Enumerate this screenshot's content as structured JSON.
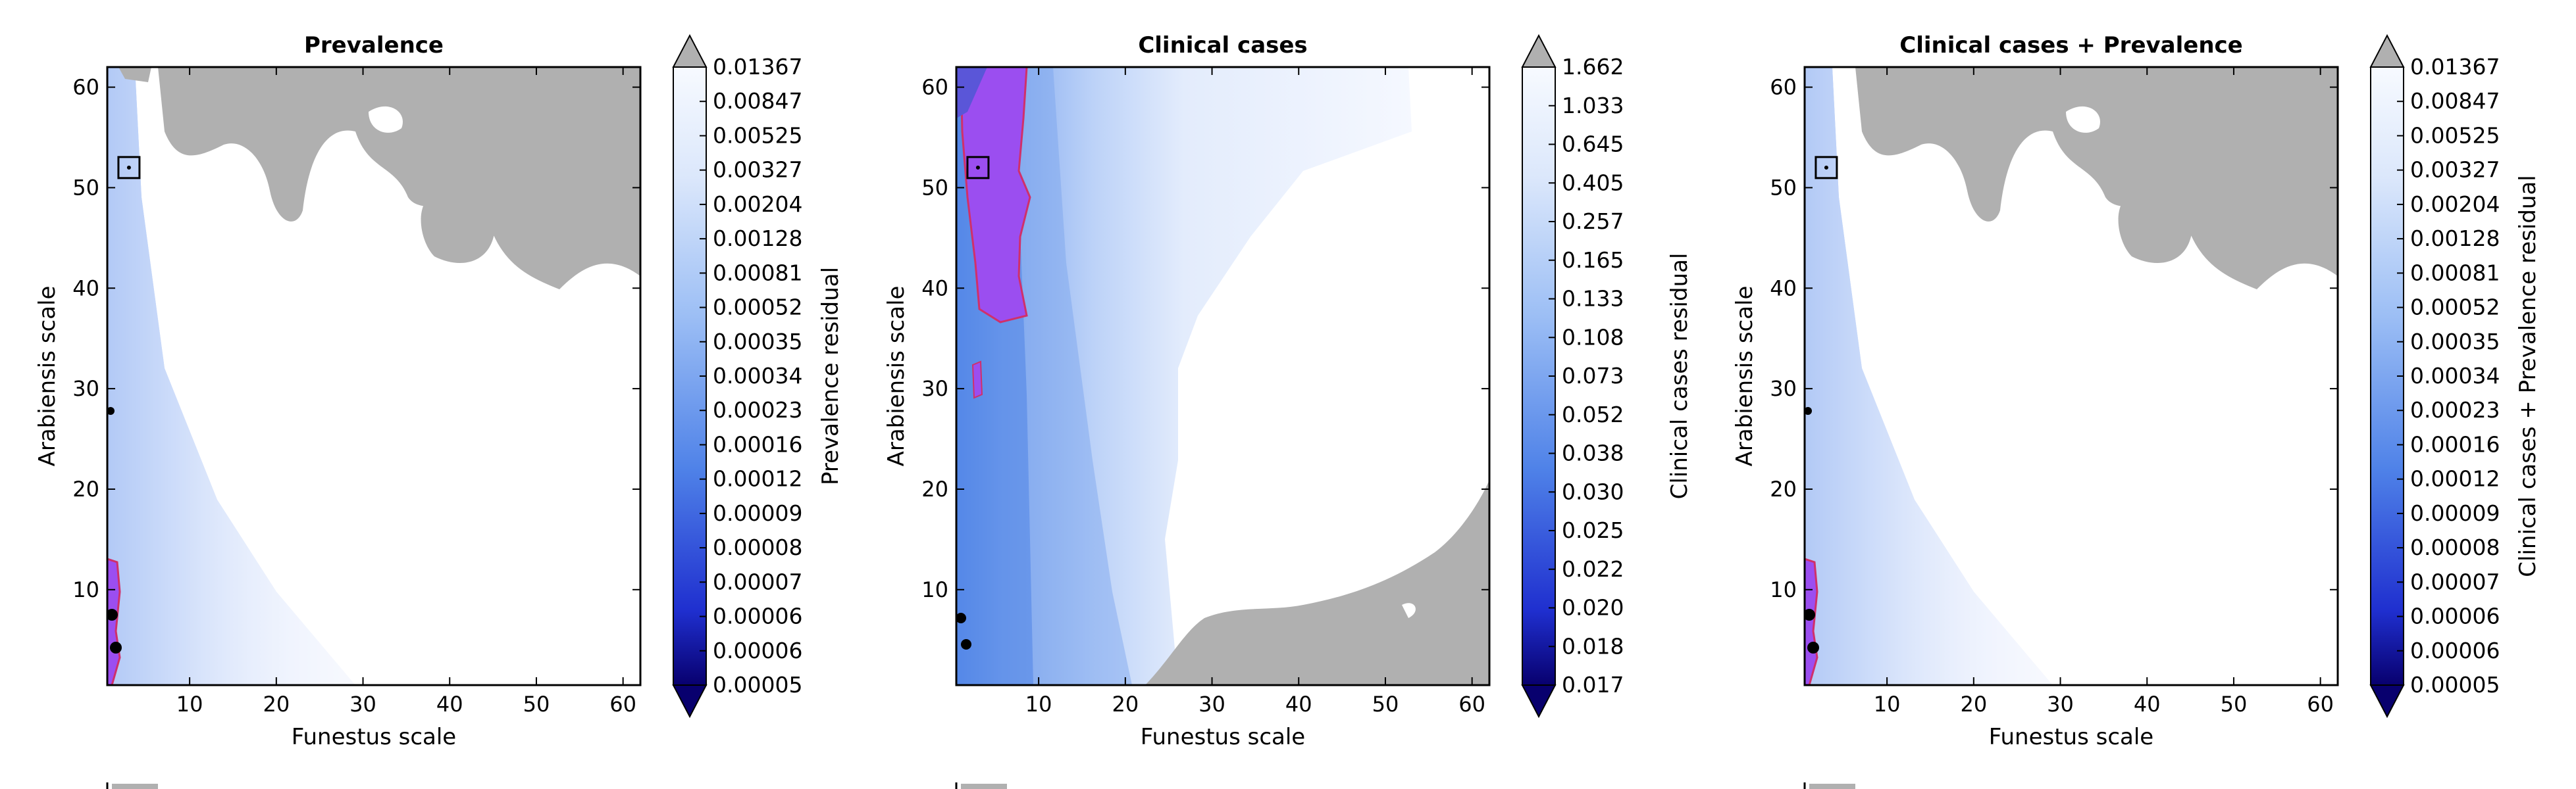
{
  "chart_data": [
    {
      "type": "heatmap",
      "title": "Prevalence",
      "xlabel": "Funestus scale",
      "ylabel": "Arabiensis scale",
      "colorbar_label": "Prevalence residual",
      "xticks": [
        "10",
        "20",
        "30",
        "40",
        "50",
        "60"
      ],
      "yticks": [
        "10",
        "20",
        "30",
        "40",
        "50",
        "60"
      ],
      "xlim": [
        0.5,
        62
      ],
      "ylim": [
        0.5,
        62
      ],
      "colorbar_ticks": [
        "0.00005",
        "0.00006",
        "0.00006",
        "0.00007",
        "0.00008",
        "0.00009",
        "0.00012",
        "0.00016",
        "0.00023",
        "0.00034",
        "0.00035",
        "0.00052",
        "0.00081",
        "0.00128",
        "0.00204",
        "0.00327",
        "0.00525",
        "0.00847",
        "0.01367"
      ],
      "marker": [
        3,
        52
      ]
    },
    {
      "type": "heatmap",
      "title": "Clinical cases",
      "xlabel": "Funestus scale",
      "ylabel": "Arabiensis scale",
      "colorbar_label": "Clinical cases residual",
      "xticks": [
        "10",
        "20",
        "30",
        "40",
        "50",
        "60"
      ],
      "yticks": [
        "10",
        "20",
        "30",
        "40",
        "50",
        "60"
      ],
      "xlim": [
        0.5,
        62
      ],
      "ylim": [
        0.5,
        62
      ],
      "colorbar_ticks": [
        "0.017",
        "0.018",
        "0.020",
        "0.022",
        "0.025",
        "0.030",
        "0.038",
        "0.052",
        "0.073",
        "0.108",
        "0.133",
        "0.165",
        "0.257",
        "0.405",
        "0.645",
        "1.033",
        "1.662"
      ],
      "marker": [
        3,
        52
      ]
    },
    {
      "type": "heatmap",
      "title": "Clinical cases + Prevalence",
      "xlabel": "Funestus scale",
      "ylabel": "Arabiensis scale",
      "colorbar_label": "Clinical cases + Prevalence residual",
      "xticks": [
        "10",
        "20",
        "30",
        "40",
        "50",
        "60"
      ],
      "yticks": [
        "10",
        "20",
        "30",
        "40",
        "50",
        "60"
      ],
      "xlim": [
        0.5,
        62
      ],
      "ylim": [
        0.5,
        62
      ],
      "colorbar_ticks": [
        "0.00005",
        "0.00006",
        "0.00006",
        "0.00007",
        "0.00008",
        "0.00009",
        "0.00012",
        "0.00016",
        "0.00023",
        "0.00034",
        "0.00035",
        "0.00052",
        "0.00081",
        "0.00128",
        "0.00204",
        "0.00327",
        "0.00525",
        "0.00847",
        "0.01367"
      ],
      "marker": [
        3,
        52
      ]
    }
  ],
  "colors": {
    "grey_region": "#b0b0b0",
    "highlight_fill": "#9b4ef0",
    "highlight_edge": "#d0306a",
    "marker": "#000000",
    "cmap_low": "#08006e",
    "cmap_high": "#ffffff"
  }
}
